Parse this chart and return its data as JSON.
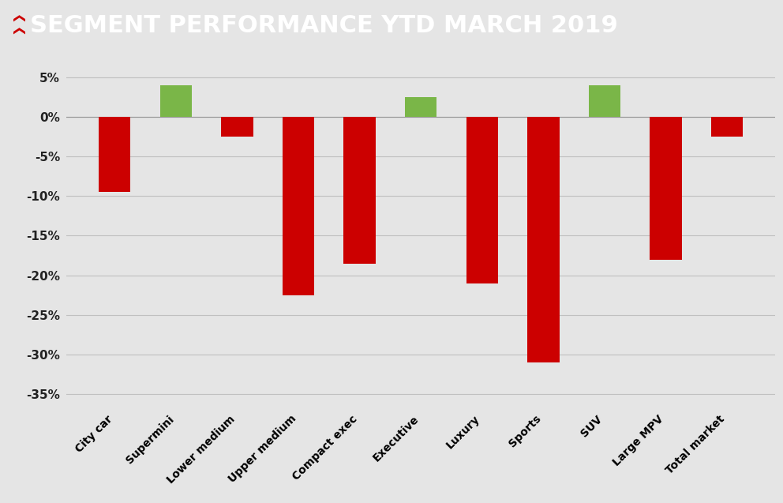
{
  "title": "SEGMENT PERFORMANCE YTD MARCH 2019",
  "title_bg": "#333333",
  "title_color": "#ffffff",
  "icon_color": "#cc0000",
  "categories": [
    "City car",
    "Supermini",
    "Lower medium",
    "Upper medium",
    "Compact exec",
    "Executive",
    "Luxury",
    "Sports",
    "SUV",
    "Large MPV",
    "Total market"
  ],
  "values": [
    -9.5,
    4.0,
    -2.5,
    -22.5,
    -18.5,
    2.5,
    -21.0,
    -31.0,
    4.0,
    -18.0,
    -2.5
  ],
  "bar_colors": [
    "#cc0000",
    "#7ab648",
    "#cc0000",
    "#cc0000",
    "#cc0000",
    "#7ab648",
    "#cc0000",
    "#cc0000",
    "#7ab648",
    "#cc0000",
    "#cc0000"
  ],
  "ylim": [
    -37,
    7
  ],
  "yticks": [
    5,
    0,
    -5,
    -10,
    -15,
    -20,
    -25,
    -30,
    -35
  ],
  "bg_color": "#e5e5e5",
  "plot_bg": "#e5e5e5",
  "grid_color": "#c0c0c0",
  "bar_width": 0.52,
  "title_fontsize": 22,
  "tick_fontsize": 11,
  "xtick_fontsize": 10
}
